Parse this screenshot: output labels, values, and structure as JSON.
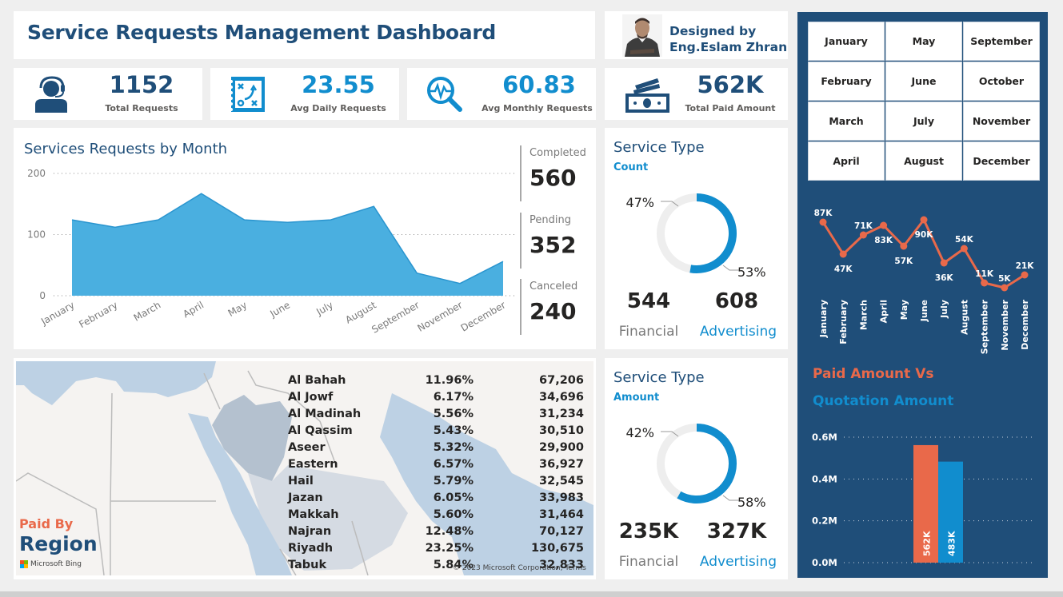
{
  "header": {
    "title": "Service Requests Management Dashboard",
    "designer_line1": "Designed by",
    "designer_line2": "Eng.Eslam Zhran"
  },
  "kpis": [
    {
      "id": "total",
      "value": "1152",
      "label": "Total Requests",
      "icon": "support-agent-icon",
      "color": "#1f4e79"
    },
    {
      "id": "daily",
      "value": "23.55",
      "label": "Avg Daily Requests",
      "icon": "strategy-board-icon",
      "color": "#118dce"
    },
    {
      "id": "monthly",
      "value": "60.83",
      "label": "Avg Monthly Requests",
      "icon": "analytics-magnifier-icon",
      "color": "#118dce"
    },
    {
      "id": "paid",
      "value": "562K",
      "label": "Total Paid Amount",
      "icon": "money-bills-icon",
      "color": "#1f4e79"
    }
  ],
  "status": {
    "completed_label": "Completed",
    "completed_value": "560",
    "pending_label": "Pending",
    "pending_value": "352",
    "canceled_label": "Canceled",
    "canceled_value": "240"
  },
  "service_count": {
    "title": "Service Type",
    "subtitle": "Count",
    "financial_pct": "47%",
    "advertising_pct": "53%",
    "financial_value": "544",
    "advertising_value": "608",
    "financial_label": "Financial",
    "advertising_label": "Advertising"
  },
  "service_amount": {
    "title": "Service Type",
    "subtitle": "Amount",
    "financial_pct": "42%",
    "advertising_pct": "58%",
    "financial_value": "235K",
    "advertising_value": "327K",
    "financial_label": "Financial",
    "advertising_label": "Advertising"
  },
  "map": {
    "paid_by": "Paid By",
    "region": "Region",
    "bing": "Microsoft Bing",
    "copyright": "© 2023 Microsoft Corporation, Terms",
    "rows": [
      {
        "name": "Al Bahah",
        "pct": "11.96%",
        "amount": "67,206"
      },
      {
        "name": "Al Jowf",
        "pct": "6.17%",
        "amount": "34,696"
      },
      {
        "name": "Al Madinah",
        "pct": "5.56%",
        "amount": "31,234"
      },
      {
        "name": "Al Qassim",
        "pct": "5.43%",
        "amount": "30,510"
      },
      {
        "name": "Aseer",
        "pct": "5.32%",
        "amount": "29,900"
      },
      {
        "name": "Eastern",
        "pct": "6.57%",
        "amount": "36,927"
      },
      {
        "name": "Hail",
        "pct": "5.79%",
        "amount": "32,545"
      },
      {
        "name": "Jazan",
        "pct": "6.05%",
        "amount": "33,983"
      },
      {
        "name": "Makkah",
        "pct": "5.60%",
        "amount": "31,464"
      },
      {
        "name": "Najran",
        "pct": "12.48%",
        "amount": "70,127"
      },
      {
        "name": "Riyadh",
        "pct": "23.25%",
        "amount": "130,675"
      },
      {
        "name": "Tabuk",
        "pct": "5.84%",
        "amount": "32,833"
      }
    ]
  },
  "month_slicer": [
    "January",
    "May",
    "September",
    "February",
    "June",
    "October",
    "March",
    "July",
    "November",
    "April",
    "August",
    "December"
  ],
  "paid_vs_quotation": {
    "line1": "Paid Amount Vs",
    "line2": "Quotation Amount"
  },
  "colors": {
    "primary": "#1f4e79",
    "accent": "#118dce",
    "orange": "#e9694a",
    "area": "#4aafe0"
  },
  "chart_data": [
    {
      "type": "area",
      "title": "Services Requests by Month",
      "categories": [
        "January",
        "February",
        "March",
        "April",
        "May",
        "June",
        "July",
        "August",
        "September",
        "November",
        "December"
      ],
      "values": [
        124,
        112,
        124,
        167,
        124,
        120,
        124,
        146,
        37,
        20,
        56
      ],
      "yticks": [
        "0",
        "100",
        "200"
      ],
      "ylim": [
        0,
        200
      ],
      "grid": true
    },
    {
      "type": "pie",
      "title": "Service Type Count",
      "categories": [
        "Financial",
        "Advertising"
      ],
      "values": [
        544,
        608
      ],
      "labels": [
        "47%",
        "53%"
      ]
    },
    {
      "type": "pie",
      "title": "Service Type Amount",
      "categories": [
        "Financial",
        "Advertising"
      ],
      "values": [
        235000,
        327000
      ],
      "labels": [
        "42%",
        "58%"
      ]
    },
    {
      "type": "line",
      "title": "Paid Amount by Month",
      "categories": [
        "January",
        "February",
        "March",
        "April",
        "May",
        "June",
        "July",
        "August",
        "September",
        "November",
        "December"
      ],
      "values": [
        87,
        47,
        71,
        83,
        57,
        90,
        36,
        54,
        11,
        5,
        21
      ],
      "labels": [
        "87K",
        "47K",
        "71K",
        "83K",
        "57K",
        "90K",
        "36K",
        "54K",
        "11K",
        "5K",
        "21K"
      ],
      "ylim": [
        0,
        100
      ]
    },
    {
      "type": "bar",
      "title": "Paid Amount Vs Quotation Amount",
      "categories": [
        "Paid Amount",
        "Quotation Amount"
      ],
      "values": [
        562000,
        483000
      ],
      "labels": [
        "562K",
        "483K"
      ],
      "yticks": [
        "0.0M",
        "0.2M",
        "0.4M",
        "0.6M"
      ],
      "ylim": [
        0,
        600000
      ],
      "grid": true
    }
  ]
}
